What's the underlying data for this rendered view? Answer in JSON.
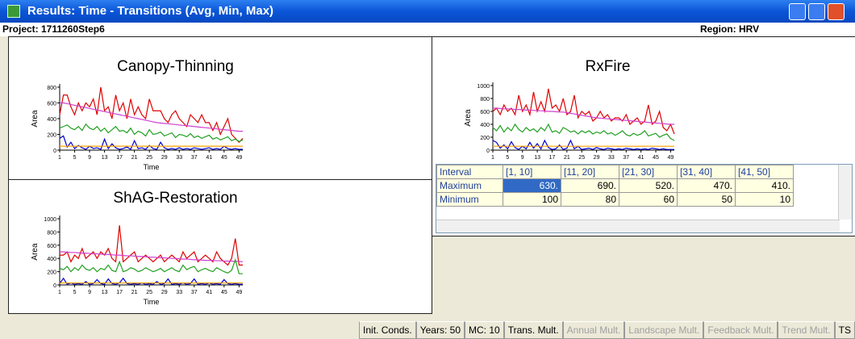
{
  "window": {
    "title": "Results: Time - Transitions (Avg, Min, Max)"
  },
  "header": {
    "project": "Project: 1711260Step6",
    "region": "Region: HRV"
  },
  "chart_data": [
    {
      "type": "line",
      "title": "Canopy-Thinning",
      "y_label": "Area",
      "x_label": "Time",
      "x": [
        1,
        2,
        3,
        4,
        5,
        6,
        7,
        8,
        9,
        10,
        11,
        12,
        13,
        14,
        15,
        16,
        17,
        18,
        19,
        20,
        21,
        22,
        23,
        24,
        25,
        26,
        27,
        28,
        29,
        30,
        31,
        32,
        33,
        34,
        35,
        36,
        37,
        38,
        39,
        40,
        41,
        42,
        43,
        44,
        45,
        46,
        47,
        48,
        49,
        50
      ],
      "xlim": [
        1,
        50
      ],
      "xticks": [
        1,
        5,
        9,
        13,
        17,
        21,
        25,
        29,
        33,
        37,
        41,
        45,
        49
      ],
      "ylim": [
        0,
        800
      ],
      "yticks": [
        0,
        200,
        400,
        600,
        800
      ],
      "series": [
        {
          "color": "#e00000",
          "values": [
            450,
            700,
            700,
            550,
            450,
            600,
            500,
            600,
            550,
            650,
            450,
            800,
            500,
            550,
            400,
            700,
            500,
            600,
            400,
            650,
            450,
            550,
            450,
            400,
            650,
            500,
            500,
            500,
            400,
            350,
            450,
            500,
            400,
            350,
            300,
            450,
            400,
            350,
            450,
            350,
            350,
            250,
            350,
            200,
            300,
            400,
            200,
            150,
            100,
            150
          ]
        },
        {
          "color": "#d040d0",
          "values": [
            600,
            600,
            590,
            580,
            570,
            560,
            550,
            540,
            530,
            520,
            510,
            500,
            490,
            480,
            470,
            460,
            450,
            440,
            430,
            420,
            410,
            400,
            390,
            380,
            370,
            360,
            350,
            345,
            340,
            335,
            330,
            325,
            320,
            315,
            310,
            305,
            300,
            295,
            290,
            285,
            280,
            275,
            270,
            265,
            260,
            255,
            250,
            245,
            240,
            240
          ]
        },
        {
          "color": "#20a020",
          "values": [
            280,
            300,
            320,
            280,
            260,
            300,
            250,
            330,
            280,
            260,
            300,
            240,
            280,
            220,
            260,
            300,
            240,
            250,
            220,
            280,
            200,
            240,
            220,
            180,
            260,
            200,
            210,
            230,
            180,
            200,
            220,
            160,
            200,
            190,
            170,
            210,
            160,
            180,
            150,
            170,
            190,
            140,
            160,
            130,
            150,
            170,
            120,
            140,
            110,
            130
          ]
        },
        {
          "color": "#0000d0",
          "values": [
            150,
            180,
            40,
            100,
            20,
            60,
            30,
            10,
            50,
            20,
            30,
            10,
            140,
            20,
            80,
            30,
            10,
            20,
            40,
            10,
            120,
            20,
            30,
            10,
            60,
            20,
            10,
            100,
            30,
            10,
            20,
            10,
            30,
            10,
            20,
            10,
            30,
            20,
            10,
            20,
            30,
            10,
            20,
            10,
            50,
            20,
            10,
            20,
            10,
            10
          ]
        },
        {
          "color": "#ffa000",
          "values": [
            50,
            50,
            50,
            50,
            50,
            50,
            50,
            50,
            50,
            50,
            50,
            50,
            50,
            50,
            50,
            50,
            50,
            50,
            50,
            50,
            50,
            50,
            50,
            50,
            50,
            50,
            50,
            50,
            50,
            50,
            50,
            50,
            50,
            50,
            50,
            50,
            50,
            50,
            50,
            50,
            50,
            50,
            50,
            50,
            50,
            50,
            50,
            50,
            50,
            50
          ]
        }
      ]
    },
    {
      "type": "line",
      "title": "RxFire",
      "y_label": "Area",
      "x_label": "Time",
      "x": [
        1,
        2,
        3,
        4,
        5,
        6,
        7,
        8,
        9,
        10,
        11,
        12,
        13,
        14,
        15,
        16,
        17,
        18,
        19,
        20,
        21,
        22,
        23,
        24,
        25,
        26,
        27,
        28,
        29,
        30,
        31,
        32,
        33,
        34,
        35,
        36,
        37,
        38,
        39,
        40,
        41,
        42,
        43,
        44,
        45,
        46,
        47,
        48,
        49,
        50
      ],
      "xlim": [
        1,
        50
      ],
      "xticks": [
        1,
        5,
        9,
        13,
        17,
        21,
        25,
        29,
        33,
        37,
        41,
        45,
        49
      ],
      "ylim": [
        0,
        1000
      ],
      "yticks": [
        0,
        200,
        400,
        600,
        800,
        1000
      ],
      "series": [
        {
          "color": "#e00000",
          "values": [
            600,
            650,
            550,
            700,
            600,
            650,
            550,
            850,
            600,
            700,
            550,
            900,
            600,
            750,
            600,
            950,
            650,
            700,
            600,
            800,
            550,
            600,
            850,
            500,
            600,
            550,
            600,
            450,
            500,
            600,
            500,
            550,
            450,
            500,
            500,
            450,
            550,
            400,
            450,
            500,
            400,
            450,
            700,
            400,
            450,
            600,
            350,
            300,
            400,
            250
          ]
        },
        {
          "color": "#d040d0",
          "values": [
            650,
            650,
            645,
            640,
            640,
            635,
            630,
            630,
            625,
            620,
            620,
            615,
            610,
            610,
            605,
            600,
            600,
            595,
            590,
            590,
            580,
            570,
            560,
            550,
            540,
            530,
            520,
            510,
            500,
            495,
            490,
            485,
            480,
            475,
            470,
            465,
            460,
            455,
            450,
            445,
            440,
            435,
            430,
            425,
            420,
            415,
            410,
            405,
            400,
            400
          ]
        },
        {
          "color": "#20a020",
          "values": [
            350,
            300,
            380,
            280,
            350,
            300,
            400,
            320,
            280,
            350,
            300,
            330,
            280,
            350,
            300,
            400,
            280,
            300,
            260,
            350,
            320,
            280,
            300,
            250,
            300,
            270,
            300,
            250,
            280,
            260,
            300,
            250,
            270,
            230,
            260,
            300,
            240,
            220,
            260,
            230,
            250,
            300,
            220,
            240,
            260,
            200,
            230,
            250,
            180,
            150
          ]
        },
        {
          "color": "#0000d0",
          "values": [
            150,
            120,
            30,
            80,
            20,
            130,
            40,
            10,
            60,
            20,
            120,
            30,
            100,
            20,
            150,
            40,
            10,
            20,
            80,
            10,
            30,
            150,
            20,
            60,
            10,
            20,
            30,
            10,
            40,
            20,
            10,
            30,
            20,
            10,
            20,
            10,
            30,
            20,
            10,
            20,
            10,
            20,
            10,
            30,
            20,
            10,
            20,
            10,
            10,
            10
          ]
        },
        {
          "color": "#ffa000",
          "values": [
            60,
            60,
            60,
            60,
            60,
            60,
            60,
            60,
            60,
            60,
            60,
            60,
            60,
            60,
            60,
            60,
            60,
            60,
            60,
            60,
            60,
            60,
            60,
            60,
            60,
            60,
            60,
            60,
            60,
            60,
            60,
            60,
            60,
            60,
            60,
            60,
            60,
            60,
            60,
            60,
            60,
            60,
            60,
            60,
            60,
            60,
            60,
            60,
            60,
            60
          ]
        }
      ]
    },
    {
      "type": "line",
      "title": "ShAG-Restoration",
      "y_label": "Area",
      "x_label": "Time",
      "x": [
        1,
        2,
        3,
        4,
        5,
        6,
        7,
        8,
        9,
        10,
        11,
        12,
        13,
        14,
        15,
        16,
        17,
        18,
        19,
        20,
        21,
        22,
        23,
        24,
        25,
        26,
        27,
        28,
        29,
        30,
        31,
        32,
        33,
        34,
        35,
        36,
        37,
        38,
        39,
        40,
        41,
        42,
        43,
        44,
        45,
        46,
        47,
        48,
        49,
        50
      ],
      "xlim": [
        1,
        50
      ],
      "xticks": [
        1,
        5,
        9,
        13,
        17,
        21,
        25,
        29,
        33,
        37,
        41,
        45,
        49
      ],
      "ylim": [
        0,
        1000
      ],
      "yticks": [
        0,
        200,
        400,
        600,
        800,
        1000
      ],
      "series": [
        {
          "color": "#e00000",
          "values": [
            450,
            450,
            500,
            350,
            450,
            400,
            550,
            400,
            450,
            500,
            400,
            500,
            450,
            550,
            400,
            350,
            900,
            350,
            400,
            450,
            500,
            350,
            400,
            450,
            400,
            350,
            400,
            450,
            350,
            400,
            450,
            400,
            350,
            500,
            400,
            450,
            500,
            350,
            400,
            450,
            400,
            350,
            500,
            400,
            350,
            300,
            400,
            700,
            300,
            300
          ]
        },
        {
          "color": "#d040d0",
          "values": [
            500,
            500,
            495,
            490,
            490,
            485,
            480,
            480,
            475,
            470,
            470,
            465,
            460,
            460,
            455,
            450,
            450,
            445,
            440,
            440,
            435,
            430,
            430,
            425,
            420,
            420,
            415,
            410,
            410,
            405,
            400,
            400,
            395,
            390,
            390,
            385,
            380,
            380,
            375,
            370,
            370,
            370,
            365,
            365,
            360,
            360,
            360,
            355,
            355,
            350
          ]
        },
        {
          "color": "#20a020",
          "values": [
            250,
            230,
            280,
            200,
            260,
            220,
            300,
            240,
            220,
            260,
            200,
            250,
            230,
            300,
            220,
            200,
            350,
            200,
            220,
            260,
            240,
            200,
            220,
            260,
            230,
            200,
            220,
            250,
            200,
            230,
            260,
            220,
            200,
            300,
            230,
            260,
            280,
            200,
            230,
            250,
            220,
            200,
            260,
            230,
            200,
            180,
            220,
            380,
            170,
            170
          ]
        },
        {
          "color": "#0000d0",
          "values": [
            20,
            100,
            10,
            30,
            10,
            20,
            10,
            50,
            10,
            20,
            80,
            20,
            10,
            90,
            20,
            10,
            30,
            100,
            20,
            10,
            20,
            10,
            30,
            10,
            20,
            10,
            50,
            10,
            20,
            90,
            10,
            20,
            10,
            30,
            10,
            20,
            90,
            10,
            20,
            10,
            30,
            10,
            20,
            10,
            80,
            20,
            10,
            20,
            10,
            10
          ]
        },
        {
          "color": "#ffa000",
          "values": [
            30,
            30,
            30,
            30,
            30,
            30,
            30,
            30,
            30,
            30,
            30,
            30,
            30,
            30,
            30,
            30,
            30,
            30,
            30,
            30,
            30,
            30,
            30,
            30,
            30,
            30,
            30,
            30,
            30,
            30,
            30,
            30,
            30,
            30,
            30,
            30,
            30,
            30,
            30,
            30,
            30,
            30,
            30,
            30,
            30,
            30,
            30,
            30,
            30,
            30
          ]
        }
      ]
    }
  ],
  "table": {
    "header": [
      "Interval",
      "[1, 10]",
      "[11, 20]",
      "[21, 30]",
      "[31, 40]",
      "[41, 50]"
    ],
    "rows": [
      [
        "Maximum",
        "630.",
        "690.",
        "520.",
        "470.",
        "410."
      ],
      [
        "Minimum",
        "100",
        "80",
        "60",
        "50",
        "10"
      ]
    ],
    "selected": [
      0,
      1
    ]
  },
  "status_bar": [
    {
      "label": "Init. Conds.",
      "enabled": true
    },
    {
      "label": "Years: 50",
      "enabled": true
    },
    {
      "label": "MC: 10",
      "enabled": true
    },
    {
      "label": "Trans. Mult.",
      "enabled": true
    },
    {
      "label": "Annual Mult.",
      "enabled": false
    },
    {
      "label": "Landscape Mult.",
      "enabled": false
    },
    {
      "label": "Feedback Mult.",
      "enabled": false
    },
    {
      "label": "Trend Mult.",
      "enabled": false
    },
    {
      "label": "TS",
      "enabled": true
    }
  ]
}
